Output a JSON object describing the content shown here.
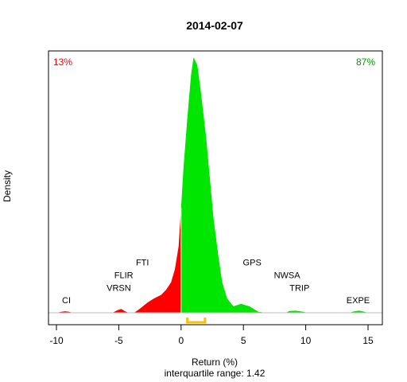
{
  "chart_data": {
    "type": "area",
    "title": "2014-02-07",
    "xlabel": "Return (%)",
    "ylabel": "Density",
    "subtitle": "interquartile range: 1.42",
    "xlim": [
      -11,
      16
    ],
    "ylim": [
      0,
      1
    ],
    "xticks": [
      -10,
      -5,
      0,
      5,
      10,
      15
    ],
    "x_tick_labels": [
      "-10",
      "-5",
      "0",
      "5",
      "10",
      "15"
    ],
    "split_at": 0,
    "pct_negative": "13%",
    "pct_positive": "87%",
    "colors": {
      "negative": "#ff0000",
      "positive": "#00e600",
      "iqr": "#ffc000",
      "baseline": "#bebebe",
      "pct_negative": "#ff0000",
      "pct_positive": "#009900"
    },
    "iqr": [
      0.5,
      1.92
    ],
    "density": [
      [
        -10.0,
        0.0
      ],
      [
        -9.6,
        0.004
      ],
      [
        -9.3,
        0.006
      ],
      [
        -9.0,
        0.004
      ],
      [
        -8.7,
        0.0
      ],
      [
        -5.5,
        0.0
      ],
      [
        -5.1,
        0.01
      ],
      [
        -4.8,
        0.015
      ],
      [
        -4.5,
        0.006
      ],
      [
        -4.2,
        0.0
      ],
      [
        -3.7,
        0.002
      ],
      [
        -3.2,
        0.02
      ],
      [
        -2.7,
        0.04
      ],
      [
        -2.2,
        0.055
      ],
      [
        -1.6,
        0.07
      ],
      [
        -1.2,
        0.09
      ],
      [
        -0.8,
        0.12
      ],
      [
        -0.5,
        0.17
      ],
      [
        -0.2,
        0.26
      ],
      [
        0.0,
        0.41
      ],
      [
        0.2,
        0.57
      ],
      [
        0.5,
        0.76
      ],
      [
        0.8,
        0.93
      ],
      [
        1.0,
        1.0
      ],
      [
        1.3,
        0.97
      ],
      [
        1.6,
        0.86
      ],
      [
        2.0,
        0.69
      ],
      [
        2.3,
        0.53
      ],
      [
        2.6,
        0.37
      ],
      [
        3.0,
        0.22
      ],
      [
        3.3,
        0.12
      ],
      [
        3.7,
        0.055
      ],
      [
        4.2,
        0.025
      ],
      [
        4.8,
        0.035
      ],
      [
        5.5,
        0.025
      ],
      [
        6.2,
        0.004
      ],
      [
        6.8,
        0.0
      ],
      [
        8.4,
        0.0
      ],
      [
        8.7,
        0.007
      ],
      [
        9.2,
        0.008
      ],
      [
        9.8,
        0.004
      ],
      [
        10.1,
        0.0
      ],
      [
        13.5,
        0.0
      ],
      [
        13.9,
        0.006
      ],
      [
        14.3,
        0.008
      ],
      [
        14.7,
        0.004
      ],
      [
        15.0,
        0.0
      ]
    ],
    "annotations": [
      {
        "label": "CI",
        "x": -9.2,
        "y": 0.038
      },
      {
        "label": "VRSN",
        "x": -5.0,
        "y": 0.085
      },
      {
        "label": "FLIR",
        "x": -4.6,
        "y": 0.135
      },
      {
        "label": "FTI",
        "x": -3.1,
        "y": 0.185
      },
      {
        "label": "GPS",
        "x": 5.7,
        "y": 0.185
      },
      {
        "label": "NWSA",
        "x": 8.5,
        "y": 0.135
      },
      {
        "label": "TRIP",
        "x": 9.5,
        "y": 0.085
      },
      {
        "label": "EXPE",
        "x": 14.2,
        "y": 0.038
      }
    ]
  }
}
